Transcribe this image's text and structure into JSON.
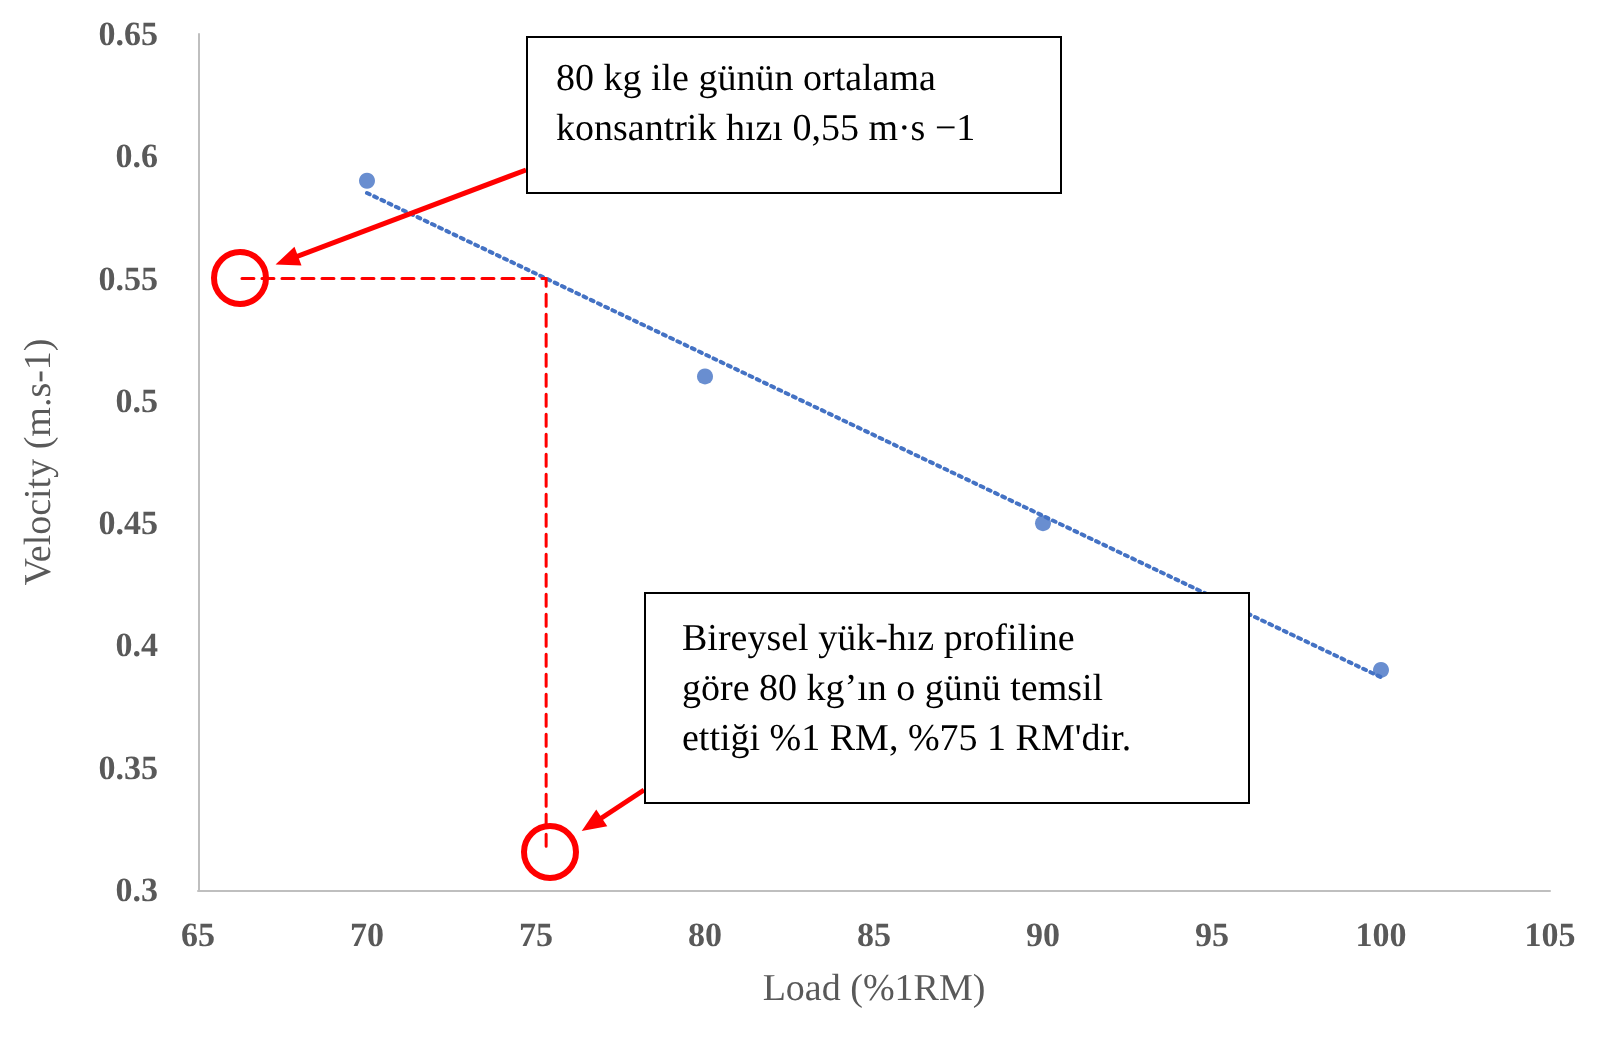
{
  "chart_data": {
    "type": "scatter",
    "xlabel": "Load (%1RM)",
    "ylabel": "Velocity (m.s-1)",
    "xlim": [
      65,
      105
    ],
    "ylim": [
      0.3,
      0.65
    ],
    "xticks": [
      65,
      70,
      75,
      80,
      85,
      90,
      95,
      100,
      105
    ],
    "yticks": [
      0.3,
      0.35,
      0.4,
      0.45,
      0.5,
      0.55,
      0.6,
      0.65
    ],
    "series": [
      {
        "color": "#4472c4",
        "marker": "circle",
        "x": [
          70,
          80,
          90,
          100
        ],
        "values": [
          0.59,
          0.51,
          0.45,
          0.39
        ]
      },
      {
        "type": "line",
        "color": "#4472c4",
        "marker": "none",
        "line_style": "dotted",
        "x": [
          70,
          100
        ],
        "values": [
          0.585,
          0.387
        ]
      },
      {
        "type": "line",
        "color": "#ff0000",
        "line_style": "dashed",
        "x": [
          66.3,
          75.3,
          75.3
        ],
        "values": [
          0.55,
          0.55,
          0.315
        ]
      }
    ],
    "annotations": [
      "80 kg ile günün ortalama konsantrik hızı 0,55 m·s −1",
      "Bireysel yük-hız profiline göre 80 kg’ın o günü temsil ettiği %1 RM, %75 1 RM'dir."
    ]
  }
}
